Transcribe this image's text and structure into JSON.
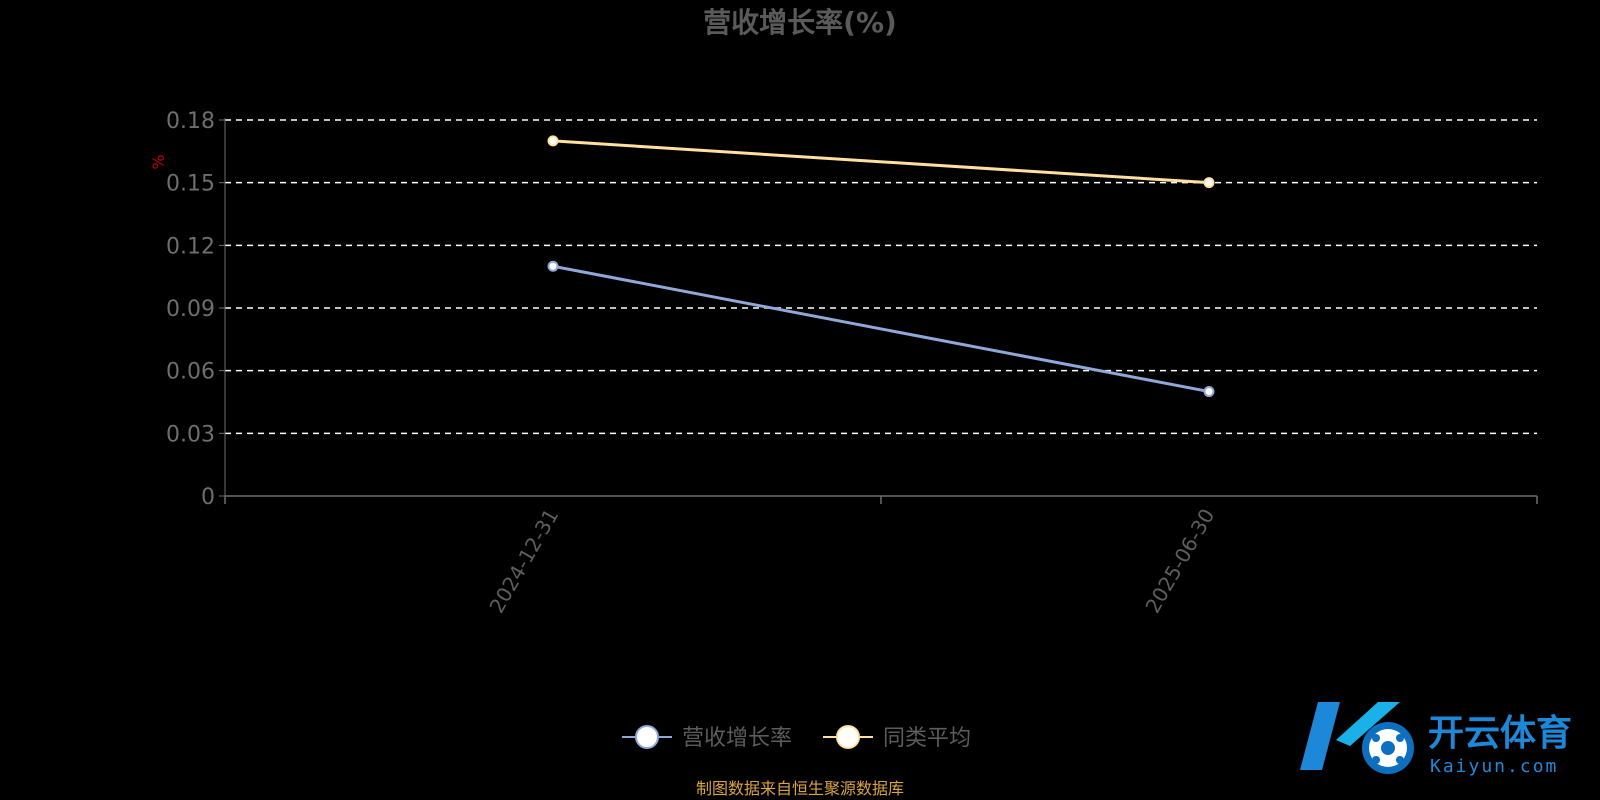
{
  "chart_data": {
    "type": "line",
    "title": "营收增长率(%)",
    "ylabel": "%",
    "xlabel": "",
    "categories": [
      "2024-12-31",
      "2025-06-30"
    ],
    "series": [
      {
        "name": "营收增长率",
        "values": [
          0.11,
          0.05
        ],
        "color": "#8fa8d8"
      },
      {
        "name": "同类平均",
        "values": [
          0.17,
          0.15
        ],
        "color": "#ffe0a0"
      }
    ],
    "ylim": [
      0,
      0.18
    ],
    "yticks": [
      "0",
      "0.03",
      "0.06",
      "0.09",
      "0.12",
      "0.15",
      "0.18"
    ],
    "grid": true,
    "legend": "bottom-center"
  },
  "source": "制图数据来自恒生聚源数据库",
  "watermark": {
    "text_cn": "开云体育",
    "text_en": "Kaiyun.com"
  },
  "colors": {
    "background": "#000000",
    "axis": "#6e6e6e",
    "grid": "#ffffff"
  }
}
